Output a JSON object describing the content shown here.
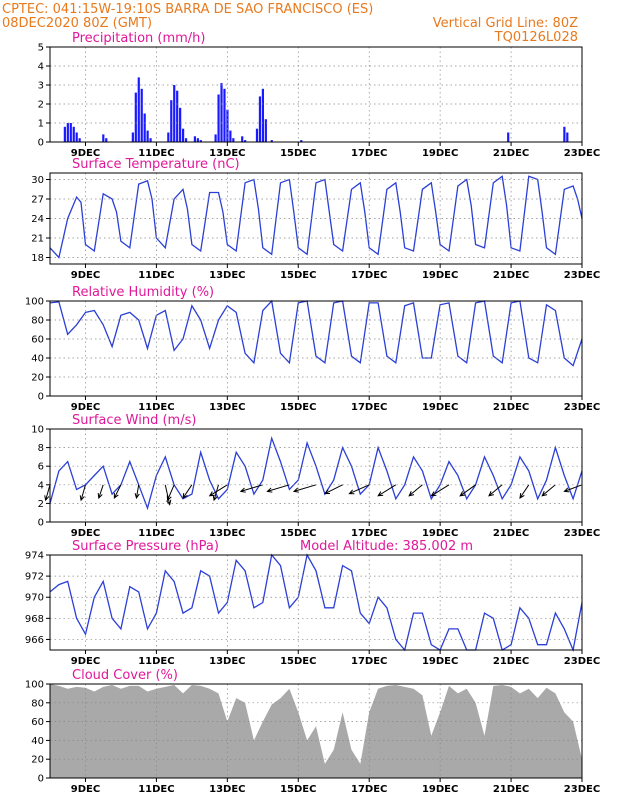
{
  "header": {
    "line1_left": "CPTEC:  041:15W-19:10S  BARRA DE SAO FRANCISCO (ES)",
    "line2_left": "08DEC2020 80Z (GMT)",
    "line2_right": "Vertical Grid Line: 80Z",
    "line3_right": "TQ0126L028"
  },
  "colors": {
    "header": "#e87a1e",
    "title": "#e0189a",
    "line": "#2b3fd6",
    "bars": "#1a1aff",
    "cloud": "#a9a9a9"
  },
  "chart_data": [
    {
      "type": "bar",
      "title": "Precipitation (mm/h)",
      "ylim": [
        0,
        5
      ],
      "yticks": [
        0,
        1,
        2,
        3,
        4,
        5
      ],
      "x_ticks": [
        "9DEC",
        "11DEC",
        "13DEC",
        "15DEC",
        "17DEC",
        "19DEC",
        "21DEC",
        "23DEC"
      ],
      "xlim_hours": [
        0,
        360
      ],
      "x_hours": [
        10,
        12,
        14,
        16,
        18,
        20,
        36,
        38,
        56,
        58,
        60,
        62,
        64,
        66,
        68,
        80,
        82,
        84,
        86,
        88,
        90,
        92,
        98,
        100,
        102,
        112,
        114,
        116,
        118,
        120,
        122,
        124,
        130,
        132,
        140,
        142,
        144,
        146,
        150,
        170,
        310,
        348,
        350
      ],
      "values": [
        0.8,
        1.0,
        1.0,
        0.8,
        0.5,
        0.2,
        0.4,
        0.2,
        0.5,
        2.6,
        3.4,
        2.8,
        1.5,
        0.6,
        0.2,
        0.5,
        2.2,
        3.0,
        2.7,
        1.8,
        0.7,
        0.2,
        0.3,
        0.2,
        0.1,
        0.4,
        2.5,
        3.1,
        2.8,
        1.7,
        0.6,
        0.2,
        0.3,
        0.1,
        0.7,
        2.4,
        2.8,
        1.2,
        0.1,
        0.1,
        0.5,
        0.8,
        0.5
      ]
    },
    {
      "type": "line",
      "title": "Surface Temperature (nC)",
      "ylim": [
        17,
        31
      ],
      "yticks": [
        18,
        21,
        24,
        27,
        30
      ],
      "x_ticks": [
        "9DEC",
        "11DEC",
        "13DEC",
        "15DEC",
        "17DEC",
        "19DEC",
        "21DEC",
        "23DEC"
      ],
      "xlim_hours": [
        0,
        360
      ],
      "x_hours": [
        0,
        6,
        12,
        18,
        21,
        24,
        30,
        36,
        42,
        45,
        48,
        54,
        60,
        66,
        69,
        72,
        78,
        84,
        90,
        93,
        96,
        102,
        108,
        114,
        117,
        120,
        126,
        132,
        138,
        141,
        144,
        150,
        156,
        162,
        165,
        168,
        174,
        180,
        186,
        189,
        192,
        198,
        204,
        210,
        213,
        216,
        222,
        228,
        234,
        237,
        240,
        246,
        252,
        258,
        261,
        264,
        270,
        276,
        282,
        285,
        288,
        294,
        300,
        306,
        309,
        312,
        318,
        324,
        330,
        333,
        336,
        342,
        348,
        354,
        357,
        360
      ],
      "values": [
        19.5,
        18.0,
        24.0,
        27.3,
        26.5,
        20.0,
        19.0,
        27.8,
        27.0,
        25.0,
        20.5,
        19.5,
        29.3,
        29.8,
        27.0,
        21.0,
        19.5,
        27.0,
        28.5,
        25.5,
        20.0,
        19.0,
        28.0,
        28.0,
        25.0,
        20.0,
        19.0,
        29.5,
        30.0,
        25.5,
        19.5,
        18.5,
        29.5,
        30.0,
        25.0,
        19.5,
        18.5,
        29.5,
        30.0,
        25.0,
        20.0,
        19.0,
        28.5,
        29.5,
        25.0,
        19.5,
        18.5,
        28.5,
        29.5,
        25.0,
        19.5,
        19.0,
        28.5,
        29.5,
        25.0,
        20.0,
        19.0,
        29.0,
        30.0,
        26.0,
        20.0,
        19.5,
        29.5,
        30.5,
        26.0,
        19.5,
        19.0,
        30.5,
        30.0,
        25.0,
        19.5,
        18.5,
        28.5,
        29.0,
        27.0,
        24.0
      ]
    },
    {
      "type": "line",
      "title": "Relative Humidity (%)",
      "ylim": [
        0,
        100
      ],
      "yticks": [
        0,
        20,
        40,
        60,
        80,
        100
      ],
      "x_ticks": [
        "9DEC",
        "11DEC",
        "13DEC",
        "15DEC",
        "17DEC",
        "19DEC",
        "21DEC",
        "23DEC"
      ],
      "xlim_hours": [
        0,
        360
      ],
      "x_hours": [
        0,
        6,
        12,
        18,
        24,
        30,
        36,
        42,
        48,
        54,
        60,
        66,
        72,
        78,
        84,
        90,
        96,
        102,
        108,
        114,
        120,
        126,
        132,
        138,
        144,
        150,
        156,
        162,
        168,
        174,
        180,
        186,
        192,
        198,
        204,
        210,
        216,
        222,
        228,
        234,
        240,
        246,
        252,
        258,
        264,
        270,
        276,
        282,
        288,
        294,
        300,
        306,
        312,
        318,
        324,
        330,
        336,
        342,
        348,
        354,
        360
      ],
      "values": [
        98,
        99,
        65,
        75,
        88,
        90,
        75,
        52,
        85,
        88,
        80,
        50,
        85,
        90,
        48,
        60,
        95,
        80,
        50,
        80,
        95,
        88,
        45,
        35,
        90,
        100,
        45,
        35,
        98,
        100,
        42,
        35,
        98,
        100,
        42,
        35,
        98,
        98,
        42,
        35,
        95,
        98,
        40,
        40,
        96,
        98,
        42,
        35,
        98,
        100,
        42,
        35,
        98,
        100,
        40,
        35,
        96,
        90,
        40,
        32,
        60
      ]
    },
    {
      "type": "line",
      "title": "Surface Wind (m/s)",
      "ylim": [
        0,
        10
      ],
      "yticks": [
        0,
        2,
        4,
        6,
        8,
        10
      ],
      "x_ticks": [
        "9DEC",
        "11DEC",
        "13DEC",
        "15DEC",
        "17DEC",
        "19DEC",
        "21DEC",
        "23DEC"
      ],
      "xlim_hours": [
        0,
        360
      ],
      "x_hours": [
        0,
        6,
        12,
        18,
        24,
        30,
        36,
        42,
        48,
        54,
        60,
        66,
        72,
        78,
        84,
        90,
        96,
        102,
        108,
        114,
        120,
        126,
        132,
        138,
        144,
        150,
        156,
        162,
        168,
        174,
        180,
        186,
        192,
        198,
        204,
        210,
        216,
        222,
        228,
        234,
        240,
        246,
        252,
        258,
        264,
        270,
        276,
        282,
        288,
        294,
        300,
        306,
        312,
        318,
        324,
        330,
        336,
        342,
        348,
        354,
        360
      ],
      "values": [
        2.0,
        5.5,
        6.5,
        3.5,
        4.0,
        5.0,
        6.0,
        3.0,
        4.0,
        6.5,
        4.0,
        1.5,
        5.0,
        7.0,
        4.0,
        2.5,
        3.0,
        7.5,
        4.5,
        2.5,
        3.5,
        7.5,
        6.0,
        3.0,
        4.5,
        9.0,
        6.5,
        3.5,
        4.5,
        8.5,
        6.0,
        3.0,
        4.5,
        8.0,
        6.0,
        3.0,
        4.0,
        8.0,
        5.5,
        2.5,
        4.0,
        7.0,
        5.5,
        2.5,
        4.0,
        6.5,
        5.0,
        2.5,
        4.0,
        7.0,
        5.0,
        2.5,
        4.0,
        7.0,
        5.5,
        2.5,
        4.5,
        8.0,
        5.0,
        2.5,
        5.5
      ],
      "arrows_hours": [
        0,
        24,
        36,
        48,
        60,
        78,
        84,
        96,
        114,
        120,
        144,
        162,
        180,
        198,
        216,
        234,
        252,
        270,
        288,
        306,
        324,
        342,
        360
      ],
      "arrows_dx": [
        -0.2,
        -0.2,
        -0.2,
        -0.3,
        -0.1,
        0.2,
        -0.3,
        -0.4,
        -0.2,
        -0.8,
        -1.0,
        -1.0,
        -1.0,
        -0.8,
        -0.9,
        -0.8,
        -0.6,
        -0.8,
        -0.7,
        -0.6,
        -0.4,
        -0.6,
        -0.8
      ],
      "arrows_dy": [
        -0.7,
        -0.7,
        -0.6,
        -0.6,
        -0.6,
        -0.9,
        -0.7,
        -0.6,
        -0.7,
        -0.5,
        -0.3,
        -0.3,
        -0.3,
        -0.4,
        -0.4,
        -0.5,
        -0.5,
        -0.5,
        -0.5,
        -0.5,
        -0.6,
        -0.5,
        -0.3
      ]
    },
    {
      "type": "line",
      "title": "Surface Pressure (hPa)",
      "annotation": "Model Altitude: 385.002 m",
      "ylim": [
        965,
        974
      ],
      "yticks": [
        966,
        968,
        970,
        972,
        974
      ],
      "x_ticks": [
        "9DEC",
        "11DEC",
        "13DEC",
        "15DEC",
        "17DEC",
        "19DEC",
        "21DEC",
        "23DEC"
      ],
      "xlim_hours": [
        0,
        360
      ],
      "x_hours": [
        0,
        6,
        12,
        18,
        24,
        30,
        36,
        42,
        48,
        54,
        60,
        66,
        72,
        78,
        84,
        90,
        96,
        102,
        108,
        114,
        120,
        126,
        132,
        138,
        144,
        150,
        156,
        162,
        168,
        174,
        180,
        186,
        192,
        198,
        204,
        210,
        216,
        222,
        228,
        234,
        240,
        246,
        252,
        258,
        264,
        270,
        276,
        282,
        288,
        294,
        300,
        306,
        312,
        318,
        324,
        330,
        336,
        342,
        348,
        354,
        360
      ],
      "values": [
        970.5,
        971.2,
        971.5,
        968.0,
        966.5,
        970.0,
        971.5,
        968.0,
        967.0,
        971.0,
        970.5,
        967.0,
        968.5,
        972.5,
        971.5,
        968.5,
        969.0,
        972.5,
        972.0,
        968.5,
        969.5,
        973.5,
        972.5,
        969.0,
        969.5,
        974.0,
        973.0,
        969.0,
        970.0,
        974.0,
        972.5,
        969.0,
        969.0,
        973.0,
        972.5,
        968.5,
        967.5,
        970.0,
        969.0,
        966.0,
        964.5,
        968.5,
        968.5,
        965.5,
        964.5,
        967.0,
        967.0,
        965.0,
        965.0,
        968.5,
        968.0,
        965.0,
        965.5,
        969.0,
        968.0,
        965.5,
        965.5,
        968.5,
        967.0,
        965.0,
        969.5
      ]
    },
    {
      "type": "area",
      "title": "Cloud Cover (%)",
      "ylim": [
        0,
        100
      ],
      "yticks": [
        0,
        20,
        40,
        60,
        80,
        100
      ],
      "x_ticks": [
        "9DEC",
        "11DEC",
        "13DEC",
        "15DEC",
        "17DEC",
        "19DEC",
        "21DEC",
        "23DEC"
      ],
      "xlim_hours": [
        0,
        360
      ],
      "x_hours": [
        0,
        6,
        12,
        18,
        24,
        30,
        36,
        42,
        48,
        54,
        60,
        66,
        72,
        78,
        84,
        90,
        96,
        102,
        108,
        114,
        120,
        126,
        132,
        138,
        144,
        150,
        156,
        162,
        168,
        174,
        180,
        186,
        192,
        198,
        204,
        210,
        216,
        222,
        228,
        234,
        240,
        246,
        252,
        258,
        264,
        270,
        276,
        282,
        288,
        294,
        300,
        306,
        312,
        318,
        324,
        330,
        336,
        342,
        348,
        354,
        360
      ],
      "values": [
        100,
        98,
        95,
        97,
        96,
        92,
        97,
        99,
        95,
        98,
        98,
        92,
        95,
        97,
        99,
        90,
        99,
        98,
        95,
        90,
        60,
        85,
        80,
        40,
        60,
        78,
        85,
        95,
        70,
        40,
        55,
        15,
        30,
        70,
        30,
        15,
        70,
        95,
        98,
        99,
        97,
        95,
        88,
        45,
        70,
        98,
        90,
        95,
        80,
        45,
        98,
        99,
        97,
        90,
        95,
        85,
        96,
        90,
        70,
        60,
        20
      ]
    }
  ]
}
